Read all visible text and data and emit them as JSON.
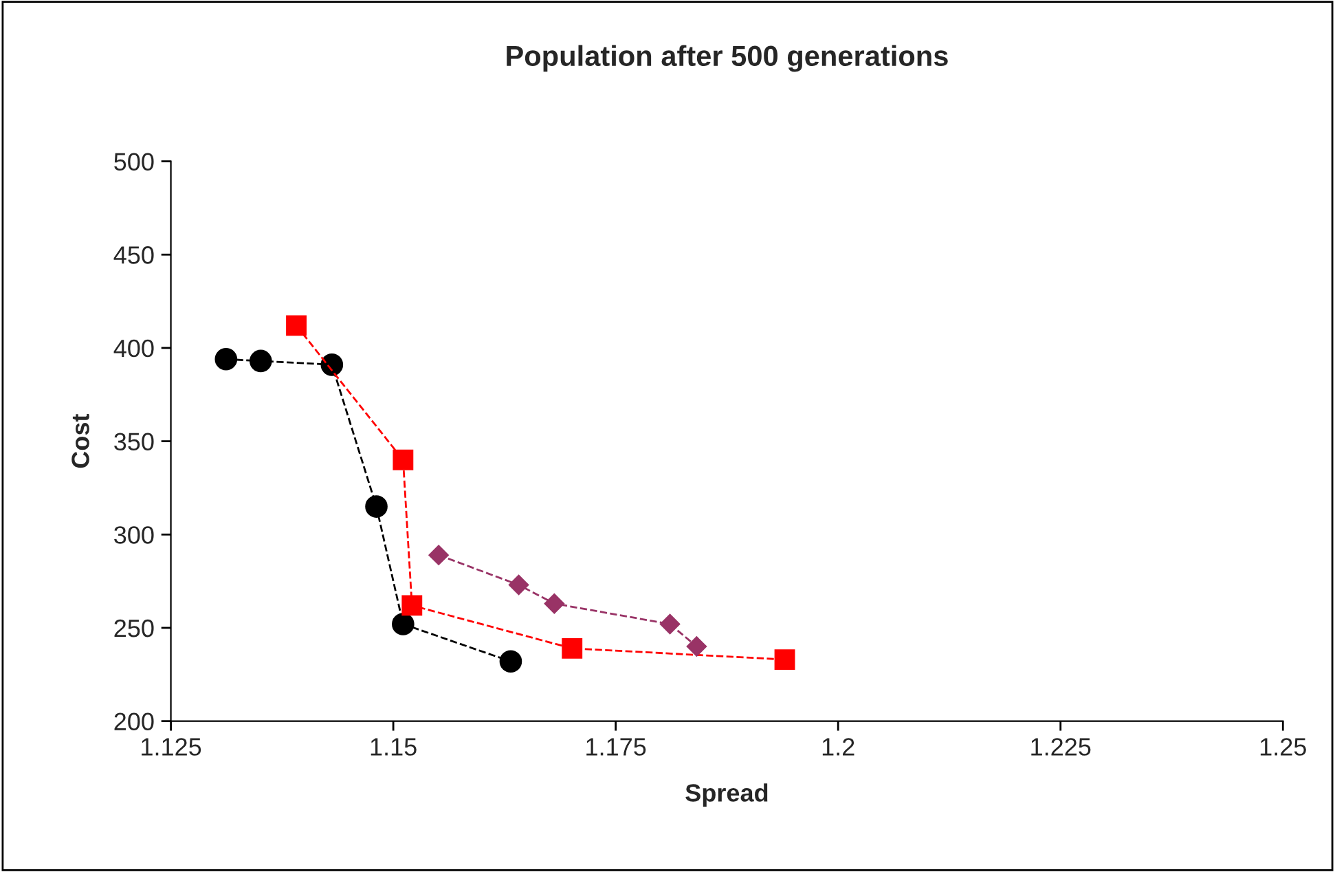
{
  "chart_data": {
    "type": "line",
    "title": "Population after 500 generations",
    "xlabel": "Spread",
    "ylabel": "Cost",
    "xlim": [
      1.125,
      1.25
    ],
    "xticks": [
      1.125,
      1.15,
      1.175,
      1.2,
      1.225,
      1.25
    ],
    "ylim": [
      200,
      500
    ],
    "yticks": [
      200,
      250,
      300,
      350,
      400,
      450,
      500
    ],
    "grid": false,
    "legend": false,
    "line_style": "dashed",
    "series": [
      {
        "color": "#000000",
        "marker": "circle",
        "x": [
          1.1312,
          1.1351,
          1.1431,
          1.1481,
          1.1511,
          1.1632
        ],
        "values": [
          394,
          393,
          391,
          315,
          252,
          232
        ]
      },
      {
        "color": "#ff0000",
        "marker": "square",
        "x": [
          1.1391,
          1.1511,
          1.1521,
          1.1701,
          1.194
        ],
        "values": [
          412,
          340,
          262,
          239,
          233
        ]
      },
      {
        "color": "#993366",
        "marker": "diamond",
        "x": [
          1.1551,
          1.1641,
          1.1681,
          1.1811,
          1.1841
        ],
        "values": [
          289,
          273,
          263,
          252,
          240
        ]
      }
    ]
  }
}
